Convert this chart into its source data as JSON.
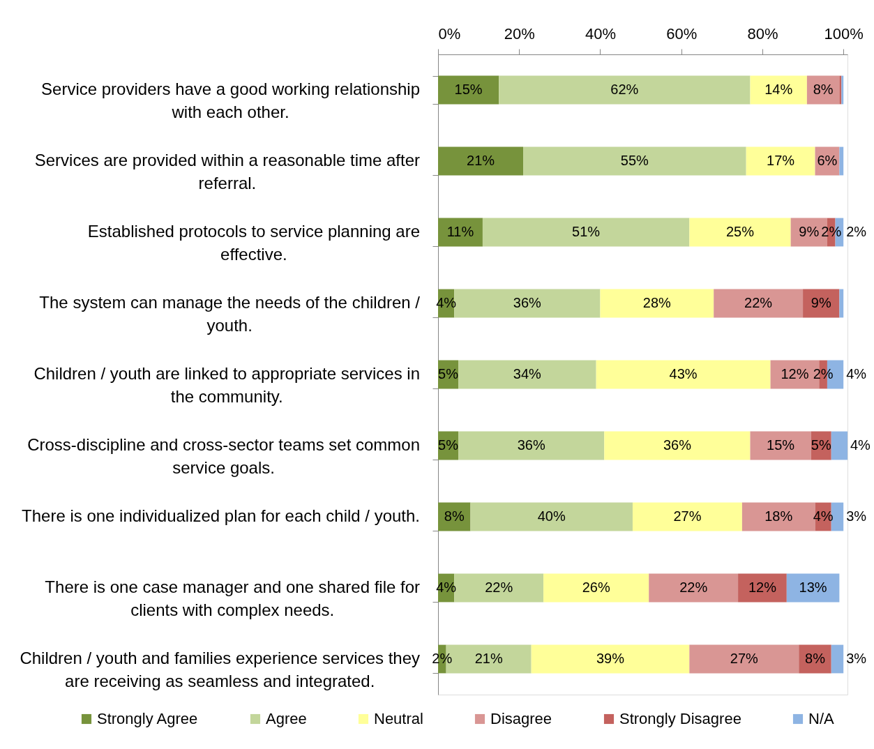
{
  "chart_data": {
    "type": "bar",
    "orientation": "horizontal",
    "stacked": true,
    "categories": [
      "Service providers have a good working relationship with each other.",
      "Services are provided within a reasonable time after referral.",
      "Established protocols to service planning are effective.",
      "The system can manage the needs of the children / youth.",
      "Children / youth are linked to appropriate services in the community.",
      "Cross-discipline and cross-sector teams set common service goals.",
      "There is one individualized plan for each child / youth.",
      "There is one case manager and one shared file for clients with complex needs.",
      "Children / youth and families experience services they are receiving as seamless and integrated."
    ],
    "series": [
      {
        "name": "Strongly Agree",
        "color": "#77933c",
        "values": [
          15,
          21,
          11,
          4,
          5,
          5,
          8,
          4,
          2
        ],
        "value_labels": [
          "15%",
          "21%",
          "11%",
          "4%",
          "5%",
          "5%",
          "8%",
          "4%",
          "2%"
        ]
      },
      {
        "name": "Agree",
        "color": "#c3d69b",
        "values": [
          62,
          55,
          51,
          36,
          34,
          36,
          40,
          22,
          21
        ],
        "value_labels": [
          "62%",
          "55%",
          "51%",
          "36%",
          "34%",
          "36%",
          "40%",
          "22%",
          "21%"
        ]
      },
      {
        "name": "Neutral",
        "color": "#ffff99",
        "values": [
          14,
          17,
          25,
          28,
          43,
          36,
          27,
          26,
          39
        ],
        "value_labels": [
          "14%",
          "17%",
          "25%",
          "28%",
          "43%",
          "36%",
          "27%",
          "26%",
          "39%"
        ]
      },
      {
        "name": "Disagree",
        "color": "#d99694",
        "values": [
          8,
          6,
          9,
          22,
          12,
          15,
          18,
          22,
          27
        ],
        "value_labels": [
          "8%",
          "6%",
          "9%",
          "22%",
          "12%",
          "15%",
          "18%",
          "22%",
          "27%"
        ]
      },
      {
        "name": "Strongly Disagree",
        "color": "#c4625e",
        "values": [
          0.5,
          null,
          2,
          9,
          2,
          5,
          4,
          12,
          8
        ],
        "value_labels": [
          null,
          null,
          "2%",
          "9%",
          "2%",
          "5%",
          "4%",
          "12%",
          "8%"
        ]
      },
      {
        "name": "N/A",
        "color": "#8eb4e3",
        "values": [
          0.5,
          1,
          2,
          1,
          4,
          4,
          3,
          13,
          3
        ],
        "value_labels": [
          null,
          null,
          "2%",
          null,
          "4%",
          "4%",
          "3%",
          "13%",
          "3%"
        ]
      }
    ],
    "xlim": [
      0,
      101
    ],
    "xticks": [
      {
        "value": 0,
        "label": "0%"
      },
      {
        "value": 20,
        "label": "20%"
      },
      {
        "value": 40,
        "label": "40%"
      },
      {
        "value": 60,
        "label": "60%"
      },
      {
        "value": 80,
        "label": "80%"
      },
      {
        "value": 100,
        "label": "100%"
      }
    ],
    "legend": "bottom"
  }
}
